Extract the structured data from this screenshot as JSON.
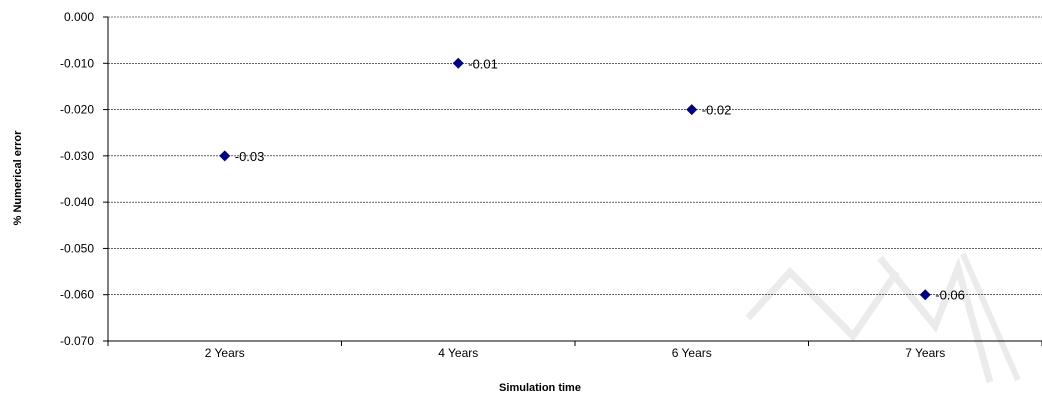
{
  "chart_data": {
    "type": "scatter",
    "categories": [
      "2 Years",
      "4 Years",
      "6 Years",
      "7 Years"
    ],
    "values": [
      -0.03,
      -0.01,
      -0.02,
      -0.06
    ],
    "data_labels": [
      "-0.03",
      "-0.01",
      "-0.02",
      "-0.06"
    ],
    "xlabel": "Simulation time",
    "ylabel": "% Numerical error",
    "ylim": [
      -0.07,
      0.0
    ],
    "y_ticks": [
      0.0,
      -0.01,
      -0.02,
      -0.03,
      -0.04,
      -0.05,
      -0.06,
      -0.07
    ],
    "y_tick_labels": [
      "0.000",
      "-0.010",
      "-0.020",
      "-0.030",
      "-0.040",
      "-0.050",
      "-0.060",
      "-0.070"
    ],
    "grid": true,
    "grid_style": "dashed horizontal",
    "legend": "none",
    "marker": "diamond",
    "marker_color": "#000080"
  },
  "watermark": "EW"
}
